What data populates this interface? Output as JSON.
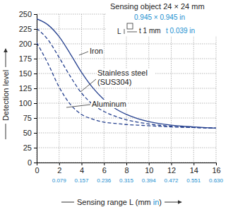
{
  "chart_data": {
    "type": "line",
    "ylabel": "Detection level",
    "xlabel_parts": [
      {
        "text": "Sensing range L (mm",
        "color": "#222222"
      },
      {
        "text": "in",
        "color": "#1a8fd0"
      },
      {
        "text": ")",
        "color": "#222222"
      }
    ],
    "x": [
      0,
      1,
      2,
      3,
      4,
      5,
      6,
      7,
      8,
      9,
      10,
      12,
      14,
      16
    ],
    "series": [
      {
        "name": "Iron",
        "color": "#26418f",
        "line_style": "solid",
        "values": [
          242,
          232,
          212,
          183,
          152,
          126,
          106,
          91,
          81,
          74,
          69,
          63,
          60,
          58
        ]
      },
      {
        "name": "Stainless steel (SUS304)",
        "color": "#26418f",
        "line_style": "dashed",
        "values": [
          226,
          207,
          177,
          145,
          117,
          98,
          86,
          78,
          72,
          68,
          65,
          61,
          59,
          58
        ]
      },
      {
        "name": "Aluminum",
        "color": "#26418f",
        "line_style": "dashed",
        "values": [
          202,
          167,
          127,
          98,
          81,
          73,
          68,
          66,
          64,
          63,
          62,
          60,
          59,
          58
        ]
      }
    ],
    "xlim": [
      0,
      16
    ],
    "xticks": [
      0,
      2,
      4,
      6,
      8,
      10,
      12,
      14,
      16
    ],
    "x2ticks": [
      {
        "value": 2,
        "label": "0.079"
      },
      {
        "value": 4,
        "label": "0.157"
      },
      {
        "value": 6,
        "label": "0.236"
      },
      {
        "value": 8,
        "label": "0.315"
      },
      {
        "value": 10,
        "label": "0.394"
      },
      {
        "value": 12,
        "label": "0.472"
      },
      {
        "value": 14,
        "label": "0.551"
      },
      {
        "value": 16,
        "label": "0.630"
      }
    ],
    "ylim": [
      0,
      250
    ],
    "yticks": [
      0,
      25,
      50,
      75,
      100,
      125,
      150,
      175,
      200,
      225,
      250
    ],
    "grid": true,
    "annotations": [
      {
        "text": "Sensing object 24 × 24 mm",
        "color": "#222222"
      },
      {
        "text": "0.945 × 0.945 in",
        "color": "#1a8fd0"
      },
      {
        "text": "L",
        "color": "#222222"
      },
      {
        "text": "t 1 mm",
        "color": "#222222"
      },
      {
        "text": "t 0.039 in",
        "color": "#1a8fd0"
      }
    ]
  }
}
